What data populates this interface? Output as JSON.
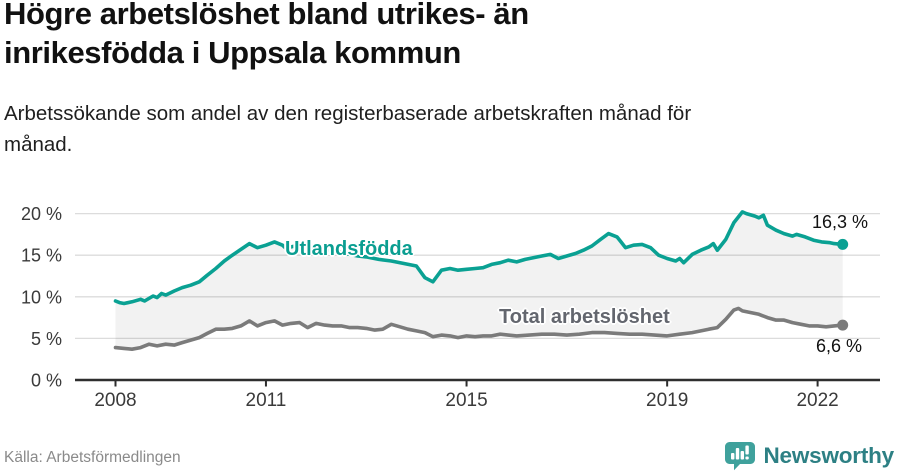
{
  "header": {
    "title_line1": "Högre arbetslöshet bland utrikes- än",
    "title_line2": "inrikesfödda i Uppsala kommun",
    "subtitle_line1": "Arbetssökande som andel av den registerbaserade arbetskraften månad för",
    "subtitle_line2": "månad."
  },
  "footer": {
    "source": "Källa: Arbetsförmedlingen",
    "brand_name": "Newsworthy"
  },
  "colors": {
    "utlandsfodda_line": "#0aa193",
    "utlandsfodda_label": "#0a9e91",
    "total_line": "#7b7b7b",
    "total_label": "#63666e",
    "axis": "#2e2e2e",
    "tick_text": "#3a3a3a",
    "grid": "#dcdcdc",
    "band_fill": "rgba(0,0,0,0.05)",
    "value_text": "#111111",
    "brand_teal_icon": "#3fa19c",
    "brand_teal_text": "#2d8084"
  },
  "chart_data": {
    "type": "line",
    "title": "Högre arbetslöshet bland utrikes- än inrikesfödda i Uppsala kommun",
    "subtitle": "Arbetssökande som andel av den registerbaserade arbetskraften månad för månad.",
    "xlabel": "",
    "ylabel": "",
    "ylim": [
      0,
      21
    ],
    "xlim": [
      2008,
      2022.5
    ],
    "grid": true,
    "band_between_series": true,
    "yticks": [
      {
        "v": 0,
        "label": "0 %"
      },
      {
        "v": 5,
        "label": "5 %"
      },
      {
        "v": 10,
        "label": "10 %"
      },
      {
        "v": 15,
        "label": "15 %"
      },
      {
        "v": 20,
        "label": "20 %"
      }
    ],
    "xticks": [
      {
        "v": 2008,
        "label": "2008"
      },
      {
        "v": 2011,
        "label": "2011"
      },
      {
        "v": 2015,
        "label": "2015"
      },
      {
        "v": 2019,
        "label": "2019"
      },
      {
        "v": 2022,
        "label": "2022"
      }
    ],
    "series": [
      {
        "name": "Utlandsfödda",
        "end_value_label": "16,3 %",
        "end_value": 16.3,
        "color": "#0aa193",
        "points": [
          [
            2008.0,
            9.5
          ],
          [
            2008.08,
            9.3
          ],
          [
            2008.17,
            9.2
          ],
          [
            2008.33,
            9.4
          ],
          [
            2008.5,
            9.7
          ],
          [
            2008.58,
            9.5
          ],
          [
            2008.75,
            10.1
          ],
          [
            2008.83,
            9.9
          ],
          [
            2008.92,
            10.4
          ],
          [
            2009.0,
            10.2
          ],
          [
            2009.17,
            10.7
          ],
          [
            2009.33,
            11.1
          ],
          [
            2009.5,
            11.4
          ],
          [
            2009.67,
            11.8
          ],
          [
            2009.83,
            12.6
          ],
          [
            2010.0,
            13.4
          ],
          [
            2010.17,
            14.3
          ],
          [
            2010.33,
            15.0
          ],
          [
            2010.5,
            15.7
          ],
          [
            2010.67,
            16.4
          ],
          [
            2010.83,
            15.9
          ],
          [
            2011.0,
            16.2
          ],
          [
            2011.17,
            16.6
          ],
          [
            2011.33,
            16.2
          ],
          [
            2011.42,
            15.7
          ],
          [
            2011.5,
            16.0
          ],
          [
            2011.67,
            16.2
          ],
          [
            2011.83,
            15.9
          ],
          [
            2012.0,
            16.1
          ],
          [
            2012.17,
            15.8
          ],
          [
            2012.33,
            15.5
          ],
          [
            2012.5,
            15.4
          ],
          [
            2012.67,
            15.1
          ],
          [
            2012.83,
            14.9
          ],
          [
            2013.0,
            14.8
          ],
          [
            2013.25,
            14.5
          ],
          [
            2013.5,
            14.3
          ],
          [
            2013.75,
            14.0
          ],
          [
            2014.0,
            13.7
          ],
          [
            2014.17,
            12.3
          ],
          [
            2014.33,
            11.8
          ],
          [
            2014.5,
            13.2
          ],
          [
            2014.67,
            13.4
          ],
          [
            2014.83,
            13.2
          ],
          [
            2015.0,
            13.3
          ],
          [
            2015.17,
            13.4
          ],
          [
            2015.33,
            13.5
          ],
          [
            2015.5,
            13.9
          ],
          [
            2015.67,
            14.1
          ],
          [
            2015.83,
            14.4
          ],
          [
            2016.0,
            14.2
          ],
          [
            2016.17,
            14.5
          ],
          [
            2016.33,
            14.7
          ],
          [
            2016.5,
            14.9
          ],
          [
            2016.67,
            15.1
          ],
          [
            2016.83,
            14.6
          ],
          [
            2017.0,
            14.9
          ],
          [
            2017.17,
            15.2
          ],
          [
            2017.33,
            15.6
          ],
          [
            2017.5,
            16.1
          ],
          [
            2017.67,
            16.9
          ],
          [
            2017.83,
            17.6
          ],
          [
            2018.0,
            17.2
          ],
          [
            2018.08,
            16.6
          ],
          [
            2018.17,
            15.9
          ],
          [
            2018.33,
            16.2
          ],
          [
            2018.5,
            16.3
          ],
          [
            2018.67,
            15.9
          ],
          [
            2018.83,
            15.0
          ],
          [
            2019.0,
            14.6
          ],
          [
            2019.17,
            14.3
          ],
          [
            2019.25,
            14.6
          ],
          [
            2019.33,
            14.1
          ],
          [
            2019.5,
            15.1
          ],
          [
            2019.67,
            15.6
          ],
          [
            2019.83,
            16.0
          ],
          [
            2019.92,
            16.4
          ],
          [
            2020.0,
            15.6
          ],
          [
            2020.17,
            16.9
          ],
          [
            2020.33,
            18.9
          ],
          [
            2020.5,
            20.2
          ],
          [
            2020.58,
            20.0
          ],
          [
            2020.75,
            19.7
          ],
          [
            2020.83,
            19.5
          ],
          [
            2020.92,
            19.8
          ],
          [
            2021.0,
            18.6
          ],
          [
            2021.17,
            18.0
          ],
          [
            2021.33,
            17.6
          ],
          [
            2021.5,
            17.3
          ],
          [
            2021.58,
            17.5
          ],
          [
            2021.75,
            17.2
          ],
          [
            2021.92,
            16.8
          ],
          [
            2022.08,
            16.6
          ],
          [
            2022.25,
            16.5
          ],
          [
            2022.33,
            16.4
          ],
          [
            2022.5,
            16.3
          ]
        ]
      },
      {
        "name": "Total arbetslöshet",
        "end_value_label": "6,6 %",
        "end_value": 6.6,
        "color": "#7b7b7b",
        "points": [
          [
            2008.0,
            3.9
          ],
          [
            2008.17,
            3.8
          ],
          [
            2008.33,
            3.7
          ],
          [
            2008.5,
            3.9
          ],
          [
            2008.67,
            4.3
          ],
          [
            2008.83,
            4.1
          ],
          [
            2009.0,
            4.3
          ],
          [
            2009.17,
            4.2
          ],
          [
            2009.33,
            4.5
          ],
          [
            2009.5,
            4.8
          ],
          [
            2009.67,
            5.1
          ],
          [
            2009.83,
            5.6
          ],
          [
            2010.0,
            6.1
          ],
          [
            2010.17,
            6.1
          ],
          [
            2010.33,
            6.2
          ],
          [
            2010.5,
            6.5
          ],
          [
            2010.67,
            7.1
          ],
          [
            2010.83,
            6.5
          ],
          [
            2011.0,
            6.9
          ],
          [
            2011.17,
            7.1
          ],
          [
            2011.33,
            6.6
          ],
          [
            2011.5,
            6.8
          ],
          [
            2011.67,
            6.9
          ],
          [
            2011.83,
            6.3
          ],
          [
            2012.0,
            6.8
          ],
          [
            2012.17,
            6.6
          ],
          [
            2012.33,
            6.5
          ],
          [
            2012.5,
            6.5
          ],
          [
            2012.67,
            6.3
          ],
          [
            2012.83,
            6.3
          ],
          [
            2013.0,
            6.2
          ],
          [
            2013.17,
            6.0
          ],
          [
            2013.33,
            6.1
          ],
          [
            2013.5,
            6.7
          ],
          [
            2013.67,
            6.4
          ],
          [
            2013.83,
            6.1
          ],
          [
            2014.0,
            5.9
          ],
          [
            2014.17,
            5.7
          ],
          [
            2014.33,
            5.2
          ],
          [
            2014.5,
            5.4
          ],
          [
            2014.67,
            5.3
          ],
          [
            2014.83,
            5.1
          ],
          [
            2015.0,
            5.3
          ],
          [
            2015.17,
            5.2
          ],
          [
            2015.33,
            5.3
          ],
          [
            2015.5,
            5.3
          ],
          [
            2015.67,
            5.5
          ],
          [
            2015.83,
            5.4
          ],
          [
            2016.0,
            5.3
          ],
          [
            2016.25,
            5.4
          ],
          [
            2016.5,
            5.5
          ],
          [
            2016.75,
            5.5
          ],
          [
            2017.0,
            5.4
          ],
          [
            2017.25,
            5.5
          ],
          [
            2017.5,
            5.7
          ],
          [
            2017.75,
            5.7
          ],
          [
            2018.0,
            5.6
          ],
          [
            2018.25,
            5.5
          ],
          [
            2018.5,
            5.5
          ],
          [
            2018.75,
            5.4
          ],
          [
            2019.0,
            5.3
          ],
          [
            2019.25,
            5.5
          ],
          [
            2019.5,
            5.7
          ],
          [
            2019.67,
            5.9
          ],
          [
            2019.83,
            6.1
          ],
          [
            2020.0,
            6.3
          ],
          [
            2020.17,
            7.3
          ],
          [
            2020.33,
            8.4
          ],
          [
            2020.42,
            8.6
          ],
          [
            2020.5,
            8.3
          ],
          [
            2020.67,
            8.1
          ],
          [
            2020.83,
            7.9
          ],
          [
            2021.0,
            7.5
          ],
          [
            2021.17,
            7.2
          ],
          [
            2021.33,
            7.2
          ],
          [
            2021.5,
            6.9
          ],
          [
            2021.67,
            6.7
          ],
          [
            2021.83,
            6.5
          ],
          [
            2022.0,
            6.5
          ],
          [
            2022.17,
            6.4
          ],
          [
            2022.33,
            6.5
          ],
          [
            2022.5,
            6.6
          ]
        ]
      }
    ]
  }
}
